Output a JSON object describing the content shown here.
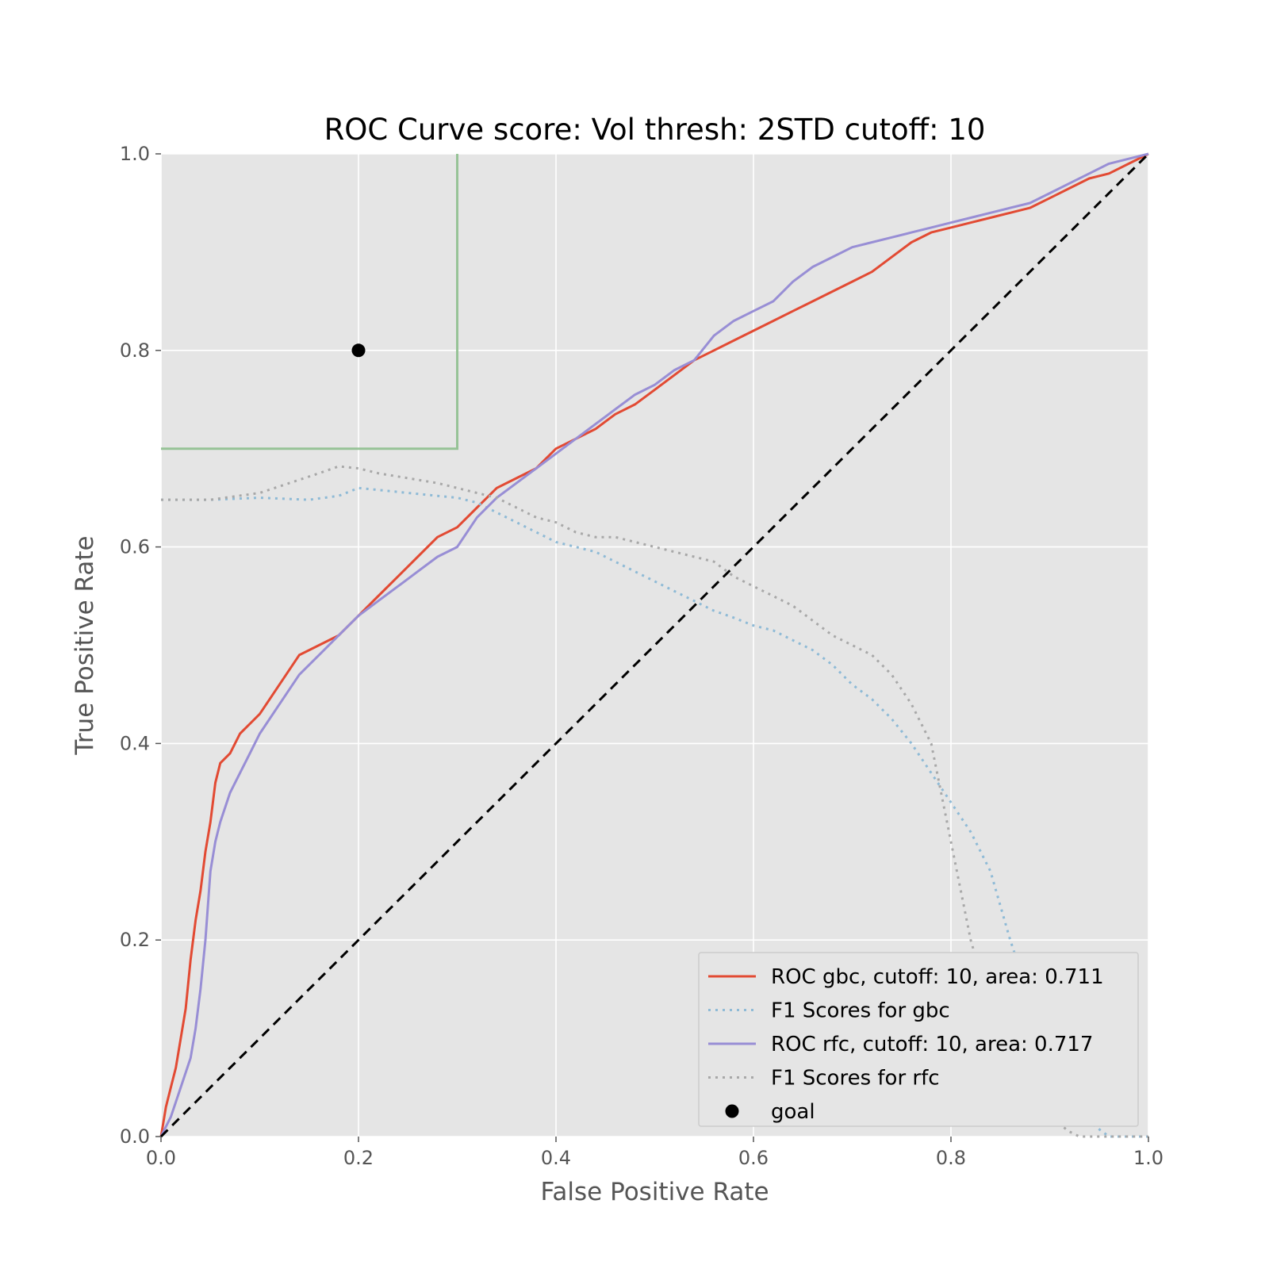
{
  "chart_data": {
    "type": "line",
    "title": "ROC Curve score: Vol thresh: 2STD cutoff: 10",
    "xlabel": "False Positive Rate",
    "ylabel": "True Positive Rate",
    "xlim": [
      0,
      1
    ],
    "ylim": [
      0,
      1
    ],
    "xticks": [
      "0.0",
      "0.2",
      "0.4",
      "0.6",
      "0.8",
      "1.0"
    ],
    "yticks": [
      "0.0",
      "0.2",
      "0.4",
      "0.6",
      "0.8",
      "1.0"
    ],
    "grid": true,
    "legend_position": "lower-right",
    "series": [
      {
        "name": "ROC gbc, cutoff: 10, area: 0.711",
        "style": "solid",
        "color": "#E24A33",
        "x": [
          0,
          0.005,
          0.01,
          0.015,
          0.02,
          0.025,
          0.03,
          0.035,
          0.04,
          0.045,
          0.05,
          0.055,
          0.06,
          0.07,
          0.08,
          0.09,
          0.1,
          0.12,
          0.14,
          0.16,
          0.18,
          0.2,
          0.22,
          0.24,
          0.26,
          0.28,
          0.3,
          0.32,
          0.34,
          0.36,
          0.38,
          0.4,
          0.42,
          0.44,
          0.46,
          0.48,
          0.5,
          0.52,
          0.54,
          0.56,
          0.58,
          0.6,
          0.62,
          0.64,
          0.66,
          0.68,
          0.7,
          0.72,
          0.74,
          0.76,
          0.78,
          0.8,
          0.82,
          0.84,
          0.86,
          0.88,
          0.9,
          0.92,
          0.94,
          0.96,
          0.98,
          1.0
        ],
        "y": [
          0,
          0.03,
          0.05,
          0.07,
          0.1,
          0.13,
          0.18,
          0.22,
          0.25,
          0.29,
          0.32,
          0.36,
          0.38,
          0.39,
          0.41,
          0.42,
          0.43,
          0.46,
          0.49,
          0.5,
          0.51,
          0.53,
          0.55,
          0.57,
          0.59,
          0.61,
          0.62,
          0.64,
          0.66,
          0.67,
          0.68,
          0.7,
          0.71,
          0.72,
          0.735,
          0.745,
          0.76,
          0.775,
          0.79,
          0.8,
          0.81,
          0.82,
          0.83,
          0.84,
          0.85,
          0.86,
          0.87,
          0.88,
          0.895,
          0.91,
          0.92,
          0.925,
          0.93,
          0.935,
          0.94,
          0.945,
          0.955,
          0.965,
          0.975,
          0.98,
          0.99,
          1.0
        ]
      },
      {
        "name": "F1 Scores for gbc",
        "style": "dotted",
        "color": "#8EBAD6",
        "x": [
          0,
          0.05,
          0.1,
          0.15,
          0.18,
          0.2,
          0.22,
          0.25,
          0.28,
          0.3,
          0.32,
          0.34,
          0.36,
          0.38,
          0.4,
          0.42,
          0.44,
          0.46,
          0.48,
          0.5,
          0.52,
          0.54,
          0.56,
          0.58,
          0.6,
          0.62,
          0.64,
          0.66,
          0.68,
          0.7,
          0.72,
          0.74,
          0.76,
          0.78,
          0.8,
          0.82,
          0.84,
          0.86,
          0.88,
          0.9,
          0.92,
          0.94,
          0.96,
          0.98,
          1.0
        ],
        "y": [
          0.648,
          0.648,
          0.65,
          0.648,
          0.652,
          0.66,
          0.658,
          0.655,
          0.652,
          0.65,
          0.645,
          0.635,
          0.625,
          0.615,
          0.605,
          0.6,
          0.595,
          0.585,
          0.575,
          0.565,
          0.555,
          0.545,
          0.535,
          0.528,
          0.52,
          0.515,
          0.505,
          0.495,
          0.48,
          0.46,
          0.445,
          0.425,
          0.4,
          0.37,
          0.34,
          0.31,
          0.27,
          0.2,
          0.14,
          0.09,
          0.045,
          0.015,
          0,
          0,
          0
        ]
      },
      {
        "name": "ROC rfc, cutoff: 10, area: 0.717",
        "style": "solid",
        "color": "#988ED5",
        "x": [
          0,
          0.01,
          0.02,
          0.03,
          0.035,
          0.04,
          0.045,
          0.05,
          0.055,
          0.06,
          0.07,
          0.08,
          0.09,
          0.1,
          0.12,
          0.14,
          0.16,
          0.18,
          0.2,
          0.22,
          0.24,
          0.26,
          0.28,
          0.3,
          0.32,
          0.34,
          0.36,
          0.38,
          0.4,
          0.42,
          0.44,
          0.46,
          0.48,
          0.5,
          0.52,
          0.54,
          0.56,
          0.58,
          0.6,
          0.62,
          0.64,
          0.66,
          0.68,
          0.7,
          0.72,
          0.74,
          0.76,
          0.78,
          0.8,
          0.82,
          0.84,
          0.86,
          0.88,
          0.9,
          0.92,
          0.94,
          0.96,
          0.98,
          1.0
        ],
        "y": [
          0,
          0.02,
          0.05,
          0.08,
          0.11,
          0.15,
          0.2,
          0.27,
          0.3,
          0.32,
          0.35,
          0.37,
          0.39,
          0.41,
          0.44,
          0.47,
          0.49,
          0.51,
          0.53,
          0.545,
          0.56,
          0.575,
          0.59,
          0.6,
          0.63,
          0.65,
          0.665,
          0.68,
          0.695,
          0.71,
          0.725,
          0.74,
          0.755,
          0.765,
          0.78,
          0.79,
          0.815,
          0.83,
          0.84,
          0.85,
          0.87,
          0.885,
          0.895,
          0.905,
          0.91,
          0.915,
          0.92,
          0.925,
          0.93,
          0.935,
          0.94,
          0.945,
          0.95,
          0.96,
          0.97,
          0.98,
          0.99,
          0.995,
          1.0
        ]
      },
      {
        "name": "F1 Scores for rfc",
        "style": "dotted",
        "color": "#A8A8A8",
        "x": [
          0,
          0.05,
          0.1,
          0.13,
          0.16,
          0.18,
          0.2,
          0.22,
          0.25,
          0.28,
          0.3,
          0.32,
          0.34,
          0.36,
          0.38,
          0.4,
          0.42,
          0.44,
          0.46,
          0.48,
          0.5,
          0.52,
          0.54,
          0.56,
          0.58,
          0.6,
          0.62,
          0.64,
          0.66,
          0.68,
          0.7,
          0.72,
          0.74,
          0.76,
          0.78,
          0.8,
          0.82,
          0.84,
          0.86,
          0.88,
          0.9,
          0.92,
          0.93,
          0.96,
          1.0
        ],
        "y": [
          0.648,
          0.648,
          0.655,
          0.665,
          0.675,
          0.682,
          0.68,
          0.675,
          0.67,
          0.665,
          0.66,
          0.655,
          0.65,
          0.64,
          0.63,
          0.625,
          0.615,
          0.61,
          0.61,
          0.605,
          0.6,
          0.595,
          0.59,
          0.585,
          0.57,
          0.56,
          0.55,
          0.54,
          0.525,
          0.51,
          0.5,
          0.49,
          0.47,
          0.44,
          0.4,
          0.3,
          0.2,
          0.13,
          0.08,
          0.045,
          0.02,
          0.005,
          0,
          0,
          0
        ]
      },
      {
        "name": "goal",
        "style": "marker",
        "color": "#000000",
        "x": [
          0.2
        ],
        "y": [
          0.8
        ]
      }
    ],
    "chance_line": {
      "x": [
        0,
        1
      ],
      "y": [
        0,
        1
      ],
      "color": "#000000",
      "style": "dashed"
    },
    "goal_region": {
      "x": [
        0,
        0.3,
        0.3
      ],
      "y": [
        0.7,
        0.7,
        1.0
      ],
      "color": "#8EBF8E"
    }
  }
}
